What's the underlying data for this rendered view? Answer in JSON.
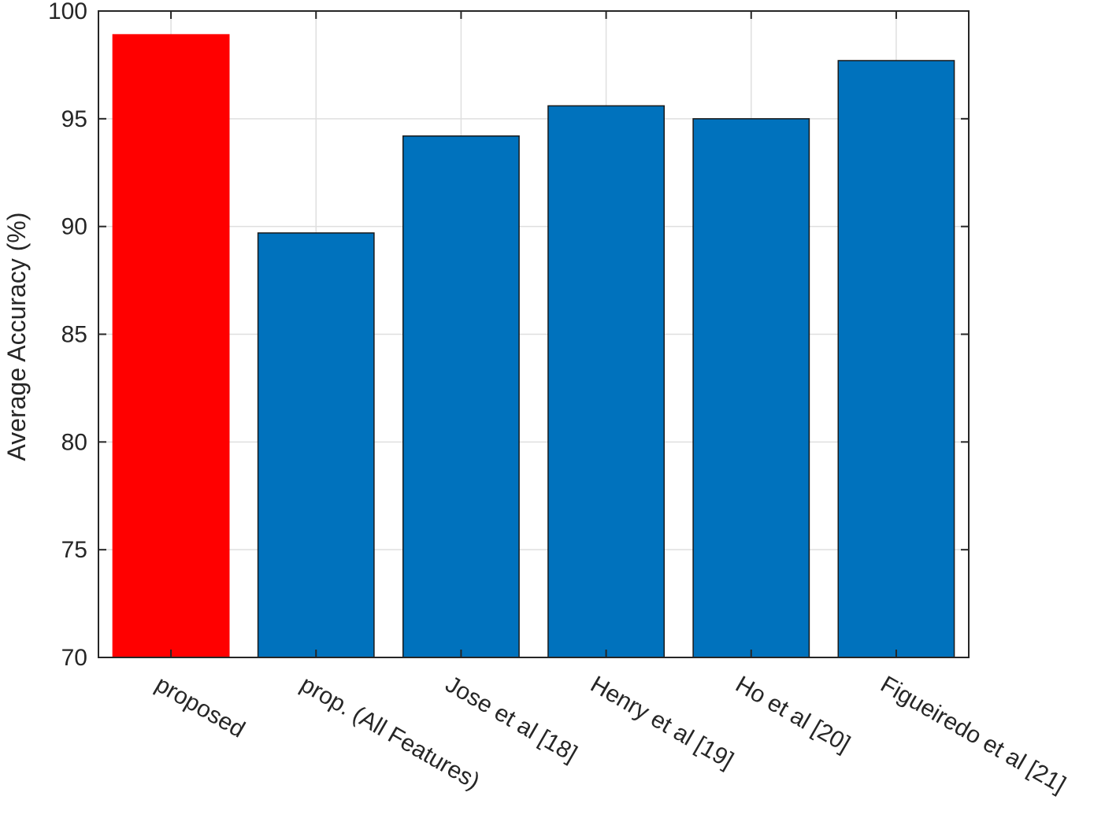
{
  "chart_data": {
    "type": "bar",
    "title": "",
    "xlabel": "",
    "ylabel": "Average Accuracy (%)",
    "ylim": [
      70,
      100
    ],
    "yticks": [
      70,
      75,
      80,
      85,
      90,
      95,
      100
    ],
    "grid": true,
    "categories": [
      "proposed",
      "prop. (All Features)",
      "Jose et al [18]",
      "Henry et al [19]",
      "Ho et al [20]",
      "Figueiredo et al [21]"
    ],
    "values": [
      98.9,
      89.7,
      94.2,
      95.6,
      95.0,
      97.7
    ],
    "bar_colors": [
      "#ff0000",
      "#0072bd",
      "#0072bd",
      "#0072bd",
      "#0072bd",
      "#0072bd"
    ]
  }
}
